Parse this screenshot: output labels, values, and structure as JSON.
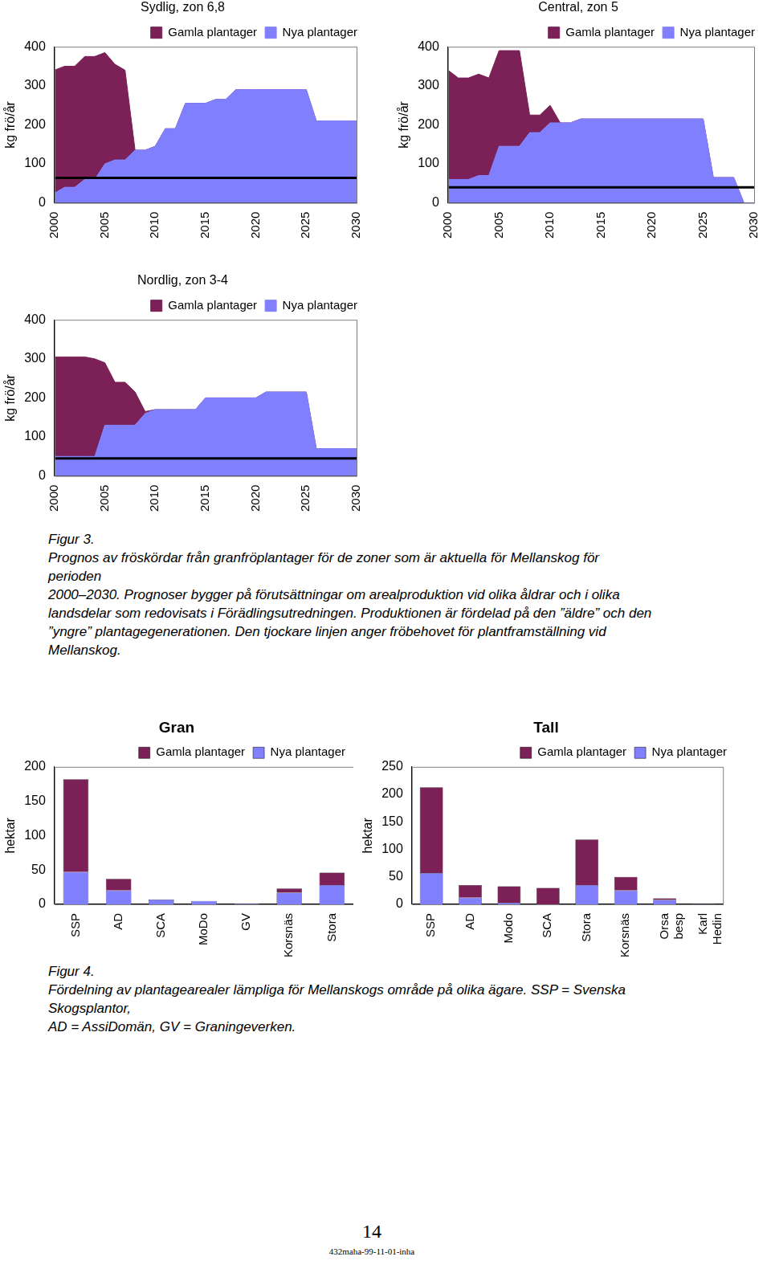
{
  "chart_data": [
    {
      "type": "area",
      "title": "Sydlig, zon 6,8",
      "y_label": "kg frö/år",
      "x": [
        2000,
        2001,
        2002,
        2003,
        2004,
        2005,
        2006,
        2007,
        2008,
        2009,
        2010,
        2011,
        2012,
        2013,
        2014,
        2015,
        2016,
        2017,
        2018,
        2019,
        2020,
        2021,
        2022,
        2023,
        2024,
        2025,
        2026,
        2027,
        2028,
        2029,
        2030
      ],
      "xlim": [
        2000,
        2030
      ],
      "xticks": [
        2000,
        2005,
        2010,
        2015,
        2020,
        2025,
        2030
      ],
      "ylim": [
        0,
        400
      ],
      "yticks": [
        0,
        100,
        200,
        300,
        400
      ],
      "grid": false,
      "stacked": true,
      "legend": "top",
      "series": [
        {
          "name": "Nya plantager",
          "type": "area",
          "color": "#8080ff",
          "values": [
            25,
            40,
            40,
            60,
            60,
            100,
            110,
            110,
            135,
            135,
            145,
            190,
            190,
            255,
            255,
            255,
            265,
            265,
            290,
            290,
            290,
            290,
            290,
            290,
            290,
            290,
            210,
            210,
            210,
            210,
            210
          ]
        },
        {
          "name": "Gamla plantager",
          "type": "area",
          "color": "#7b2157",
          "values": [
            315,
            310,
            310,
            315,
            315,
            285,
            245,
            230,
            0,
            0,
            0,
            0,
            0,
            0,
            0,
            0,
            0,
            0,
            0,
            0,
            0,
            0,
            0,
            0,
            0,
            0,
            0,
            0,
            0,
            0,
            0
          ]
        },
        {
          "type": "line",
          "color": "#000000",
          "values": [
            64,
            64,
            64,
            64,
            64,
            64,
            64,
            64,
            64,
            64,
            64,
            64,
            64,
            64,
            64,
            64,
            64,
            64,
            64,
            64,
            64,
            64,
            64,
            64,
            64,
            64,
            64,
            64,
            64,
            64,
            64
          ]
        }
      ]
    },
    {
      "type": "area",
      "title": "Central, zon 5",
      "y_label": "kg frö/år",
      "x": [
        2000,
        2001,
        2002,
        2003,
        2004,
        2005,
        2006,
        2007,
        2008,
        2009,
        2010,
        2011,
        2012,
        2013,
        2014,
        2015,
        2016,
        2017,
        2018,
        2019,
        2020,
        2021,
        2022,
        2023,
        2024,
        2025,
        2026,
        2027,
        2028,
        2029,
        2030
      ],
      "xlim": [
        2000,
        2030
      ],
      "xticks": [
        2000,
        2005,
        2010,
        2015,
        2020,
        2025,
        2030
      ],
      "ylim": [
        0,
        400
      ],
      "yticks": [
        0,
        100,
        200,
        300,
        400
      ],
      "grid": false,
      "stacked": true,
      "legend": "top",
      "series": [
        {
          "name": "Nya plantager",
          "type": "area",
          "color": "#8080ff",
          "values": [
            60,
            60,
            60,
            70,
            70,
            145,
            145,
            145,
            180,
            180,
            205,
            205,
            205,
            215,
            215,
            215,
            215,
            215,
            215,
            215,
            215,
            215,
            215,
            215,
            215,
            215,
            65,
            65,
            65,
            0,
            0
          ]
        },
        {
          "name": "Gamla plantager",
          "type": "area",
          "color": "#7b2157",
          "values": [
            280,
            260,
            260,
            260,
            250,
            245,
            245,
            245,
            45,
            45,
            45,
            0,
            0,
            0,
            0,
            0,
            0,
            0,
            0,
            0,
            0,
            0,
            0,
            0,
            0,
            0,
            0,
            0,
            0,
            0,
            0
          ]
        },
        {
          "type": "line",
          "color": "#000000",
          "values": [
            40,
            40,
            40,
            40,
            40,
            40,
            40,
            40,
            40,
            40,
            40,
            40,
            40,
            40,
            40,
            40,
            40,
            40,
            40,
            40,
            40,
            40,
            40,
            40,
            40,
            40,
            40,
            40,
            40,
            40,
            40
          ]
        }
      ]
    },
    {
      "type": "area",
      "title": "Nordlig, zon 3-4",
      "y_label": "kg frö/år",
      "x": [
        2000,
        2001,
        2002,
        2003,
        2004,
        2005,
        2006,
        2007,
        2008,
        2009,
        2010,
        2011,
        2012,
        2013,
        2014,
        2015,
        2016,
        2017,
        2018,
        2019,
        2020,
        2021,
        2022,
        2023,
        2024,
        2025,
        2026,
        2027,
        2028,
        2029,
        2030
      ],
      "xlim": [
        2000,
        2030
      ],
      "xticks": [
        2000,
        2005,
        2010,
        2015,
        2020,
        2025,
        2030
      ],
      "ylim": [
        0,
        400
      ],
      "yticks": [
        0,
        100,
        200,
        300,
        400
      ],
      "grid": false,
      "stacked": true,
      "legend": "top",
      "series": [
        {
          "name": "Nya plantager",
          "type": "area",
          "color": "#8080ff",
          "values": [
            50,
            50,
            50,
            50,
            50,
            130,
            130,
            130,
            130,
            160,
            170,
            170,
            170,
            170,
            170,
            200,
            200,
            200,
            200,
            200,
            200,
            215,
            215,
            215,
            215,
            215,
            70,
            70,
            70,
            70,
            70
          ]
        },
        {
          "name": "Gamla plantager",
          "type": "area",
          "color": "#7b2157",
          "values": [
            255,
            255,
            255,
            255,
            250,
            160,
            110,
            110,
            85,
            5,
            0,
            0,
            0,
            0,
            0,
            0,
            0,
            0,
            0,
            0,
            0,
            0,
            0,
            0,
            0,
            0,
            0,
            0,
            0,
            0,
            0
          ]
        },
        {
          "type": "line",
          "color": "#000000",
          "values": [
            45,
            45,
            45,
            45,
            45,
            45,
            45,
            45,
            45,
            45,
            45,
            45,
            45,
            45,
            45,
            45,
            45,
            45,
            45,
            45,
            45,
            45,
            45,
            45,
            45,
            45,
            45,
            45,
            45,
            45,
            45
          ]
        }
      ]
    },
    {
      "type": "bar",
      "title": "Gran",
      "y_label": "hektar",
      "categories": [
        "SSP",
        "AD",
        "SCA",
        "MoDo",
        "GV",
        "Korsnäs",
        "Stora"
      ],
      "ylim": [
        0,
        200
      ],
      "yticks": [
        0,
        50,
        100,
        150,
        200
      ],
      "grid": false,
      "stacked": true,
      "legend": "top",
      "series": [
        {
          "name": "Nya plantager",
          "color": "#8080ff",
          "values": [
            47,
            20,
            7,
            5,
            1,
            17,
            28
          ]
        },
        {
          "name": "Gamla plantager",
          "color": "#7b2157",
          "values": [
            135,
            17,
            0,
            0,
            0,
            6,
            18
          ]
        }
      ]
    },
    {
      "type": "bar",
      "title": "Tall",
      "y_label": "hektar",
      "categories": [
        "SSP",
        "AD",
        "Modo",
        "SCA",
        "Stora",
        "Korsnäs",
        "Orsa besp",
        "Karl Hedin"
      ],
      "ylim": [
        0,
        250
      ],
      "yticks": [
        0,
        50,
        100,
        150,
        200,
        250
      ],
      "grid": false,
      "stacked": true,
      "legend": "top",
      "series": [
        {
          "name": "Nya plantager",
          "color": "#8080ff",
          "values": [
            57,
            12,
            3,
            0,
            35,
            25,
            8,
            1
          ]
        },
        {
          "name": "Gamla plantager",
          "color": "#7b2157",
          "values": [
            156,
            23,
            30,
            30,
            83,
            25,
            3,
            0
          ]
        }
      ]
    }
  ],
  "captions": [
    {
      "label": "Figur 3.",
      "lines": [
        "Prognos av fröskördar från granfröplantager för de zoner som är aktuella för Mellanskog för",
        "perioden",
        "2000–2030. Prognoser bygger på förutsättningar om arealproduktion vid olika åldrar och i olika",
        "landsdelar som redovisats i Förädlingsutredningen. Produktionen är fördelad på den ”äldre” och den",
        "”yngre” plantagegenerationen. Den tjockare linjen anger fröbehovet för plantframställning vid",
        "Mellanskog."
      ]
    },
    {
      "label": "Figur 4.",
      "lines": [
        "Fördelning av plantagearealer lämpliga för Mellanskogs område på olika ägare. SSP = Svenska",
        "Skogsplantor,",
        "AD = AssiDomän, GV = Graningeverken."
      ]
    }
  ],
  "page": {
    "number": "14",
    "footer": "432maha-99-11-01-inha"
  }
}
